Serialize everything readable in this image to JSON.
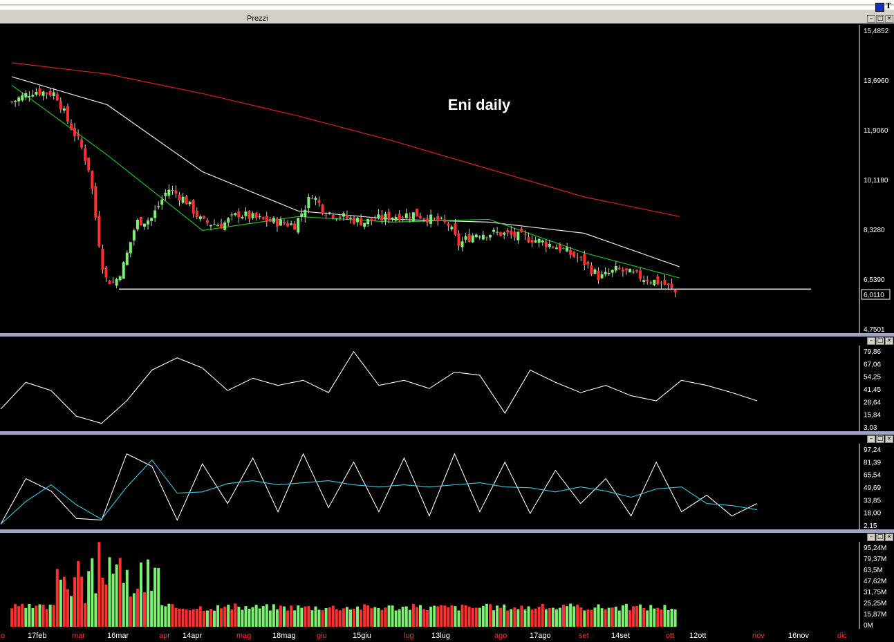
{
  "window": {
    "title": "Prezzi",
    "t_button": "T"
  },
  "price_panel": {
    "annotation": "Eni daily",
    "y_ticks": [
      "15,4852",
      "13,6960",
      "11,9060",
      "10,1180",
      "8,3280",
      "6,5390",
      "4,7501"
    ],
    "last_price_label": "6,0110"
  },
  "rsi_panel": {
    "y_ticks": [
      "79,86",
      "67,06",
      "54,25",
      "41,45",
      "28,64",
      "15,84",
      "3,03"
    ]
  },
  "stoch_panel": {
    "y_ticks": [
      "97,24",
      "81,39",
      "65,54",
      "49,69",
      "33,85",
      "18,00",
      "2,15"
    ]
  },
  "volume_panel": {
    "y_ticks": [
      "95,24M",
      "79,37M",
      "63,5M",
      "47,62M",
      "31,75M",
      "25,25M",
      "15,87M",
      "0M"
    ]
  },
  "x_axis": [
    {
      "label": "o",
      "red": true
    },
    {
      "label": "17feb",
      "red": false
    },
    {
      "label": "mar",
      "red": true
    },
    {
      "label": "16mar",
      "red": false
    },
    {
      "label": "apr",
      "red": true
    },
    {
      "label": "14apr",
      "red": false
    },
    {
      "label": "mag",
      "red": true
    },
    {
      "label": "18mag",
      "red": false
    },
    {
      "label": "giu",
      "red": true
    },
    {
      "label": "15giu",
      "red": false
    },
    {
      "label": "lug",
      "red": true
    },
    {
      "label": "13lug",
      "red": false
    },
    {
      "label": "ago",
      "red": true
    },
    {
      "label": "17ago",
      "red": false
    },
    {
      "label": "set",
      "red": true
    },
    {
      "label": "14set",
      "red": false
    },
    {
      "label": "ott",
      "red": true
    },
    {
      "label": "12ott",
      "red": false
    },
    {
      "label": "nov",
      "red": true
    },
    {
      "label": "16nov",
      "red": false
    },
    {
      "label": "dic",
      "red": true
    }
  ],
  "colors": {
    "up": "#7cf070",
    "down": "#ff3030",
    "ma_long": "#e02020",
    "ma_mid": "#e8e8e8",
    "ma_short": "#20c020",
    "stoch_k": "#ffffff",
    "stoch_d": "#40c8e0"
  },
  "chart_data": {
    "type": "candlestick",
    "instrument": "Eni",
    "timeframe": "daily",
    "ylim": [
      4.7501,
      15.4852
    ],
    "support_level": 6.2,
    "last_price": 6.011,
    "close_path": [
      {
        "date": "2020-02-03",
        "close": 12.9
      },
      {
        "date": "2020-02-12",
        "close": 13.3
      },
      {
        "date": "2020-02-21",
        "close": 13.2
      },
      {
        "date": "2020-02-26",
        "close": 12.2
      },
      {
        "date": "2020-03-02",
        "close": 11.4
      },
      {
        "date": "2020-03-06",
        "close": 10.4
      },
      {
        "date": "2020-03-09",
        "close": 8.3
      },
      {
        "date": "2020-03-12",
        "close": 6.6
      },
      {
        "date": "2020-03-16",
        "close": 6.4
      },
      {
        "date": "2020-03-20",
        "close": 7.1
      },
      {
        "date": "2020-03-25",
        "close": 8.6
      },
      {
        "date": "2020-03-31",
        "close": 8.7
      },
      {
        "date": "2020-04-07",
        "close": 9.8
      },
      {
        "date": "2020-04-14",
        "close": 9.4
      },
      {
        "date": "2020-04-21",
        "close": 8.6
      },
      {
        "date": "2020-04-29",
        "close": 8.5
      },
      {
        "date": "2020-05-06",
        "close": 8.9
      },
      {
        "date": "2020-05-14",
        "close": 8.7
      },
      {
        "date": "2020-05-22",
        "close": 8.6
      },
      {
        "date": "2020-05-29",
        "close": 8.5
      },
      {
        "date": "2020-06-05",
        "close": 9.6
      },
      {
        "date": "2020-06-10",
        "close": 9.0
      },
      {
        "date": "2020-06-17",
        "close": 8.8
      },
      {
        "date": "2020-06-26",
        "close": 8.6
      },
      {
        "date": "2020-07-07",
        "close": 8.8
      },
      {
        "date": "2020-07-17",
        "close": 8.9
      },
      {
        "date": "2020-07-31",
        "close": 8.5
      },
      {
        "date": "2020-08-04",
        "close": 7.8
      },
      {
        "date": "2020-08-11",
        "close": 8.2
      },
      {
        "date": "2020-08-21",
        "close": 8.2
      },
      {
        "date": "2020-09-03",
        "close": 8.0
      },
      {
        "date": "2020-09-14",
        "close": 7.7
      },
      {
        "date": "2020-09-24",
        "close": 7.2
      },
      {
        "date": "2020-10-01",
        "close": 6.6
      },
      {
        "date": "2020-10-08",
        "close": 6.9
      },
      {
        "date": "2020-10-19",
        "close": 6.6
      },
      {
        "date": "2020-10-27",
        "close": 6.4
      },
      {
        "date": "2020-11-02",
        "close": 6.0
      }
    ],
    "moving_averages": [
      {
        "name": "long MA",
        "color": "red",
        "values": [
          14.3,
          13.9,
          13.2,
          12.4,
          11.5,
          10.5,
          9.5,
          8.8
        ]
      },
      {
        "name": "mid MA",
        "color": "white",
        "values": [
          13.8,
          12.8,
          10.4,
          9.0,
          8.7,
          8.6,
          8.2,
          7.0
        ]
      },
      {
        "name": "short MA",
        "color": "green",
        "values": [
          13.5,
          11.0,
          8.3,
          8.8,
          8.6,
          8.7,
          7.5,
          6.6
        ]
      }
    ],
    "rsi_ylim": [
      3.03,
      79.86
    ],
    "rsi": [
      22,
      48,
      40,
      15,
      8,
      30,
      60,
      72,
      62,
      40,
      52,
      45,
      50,
      38,
      78,
      45,
      50,
      42,
      58,
      55,
      18,
      60,
      48,
      38,
      45,
      35,
      30,
      50,
      45,
      38,
      30
    ],
    "stochastic_ylim": [
      2.15,
      97.24
    ],
    "stochastic": [
      5,
      60,
      45,
      12,
      10,
      90,
      75,
      10,
      78,
      30,
      85,
      20,
      90,
      25,
      80,
      20,
      85,
      15,
      90,
      20,
      80,
      18,
      70,
      30,
      60,
      15,
      80,
      20,
      40,
      15,
      30
    ],
    "volume_ylim": [
      0,
      95.24
    ],
    "volume_unit": "M",
    "volume_last": 25.25
  }
}
